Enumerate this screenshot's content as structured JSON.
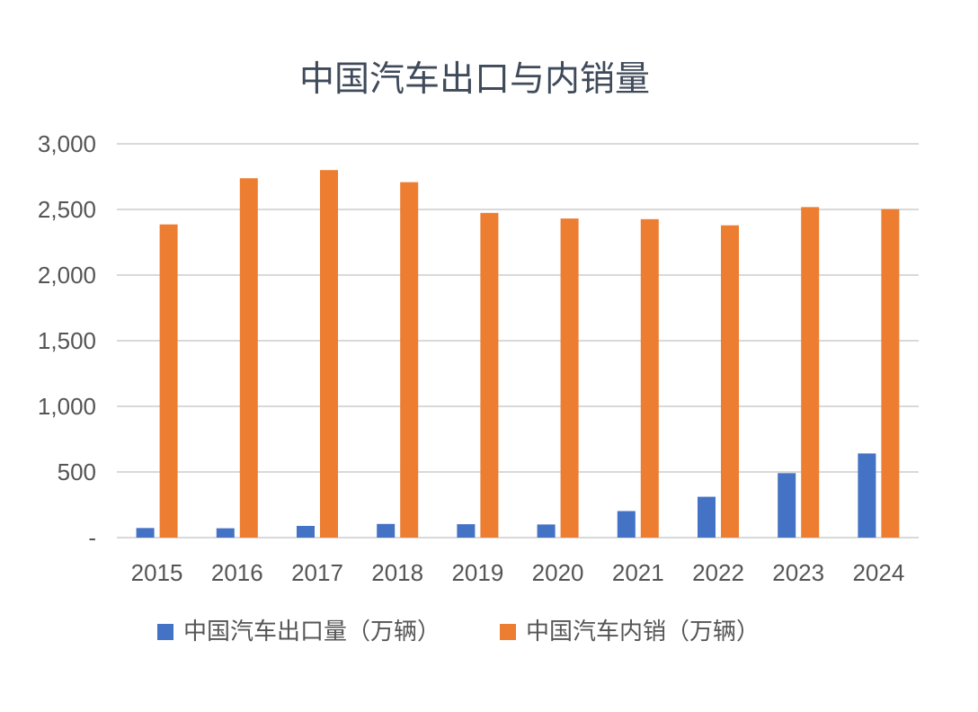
{
  "chart_data": {
    "type": "bar",
    "title": "中国汽车出口与内销量",
    "categories": [
      "2015",
      "2016",
      "2017",
      "2018",
      "2019",
      "2020",
      "2021",
      "2022",
      "2023",
      "2024"
    ],
    "series": [
      {
        "name": "中国汽车出口量（万辆）",
        "color": "#4472c4",
        "values": [
          73,
          71,
          89,
          104,
          102,
          100,
          202,
          311,
          491,
          641
        ]
      },
      {
        "name": "中国汽车内销（万辆）",
        "color": "#ed7d31",
        "values": [
          2386,
          2738,
          2800,
          2708,
          2474,
          2431,
          2426,
          2379,
          2518,
          2502
        ]
      }
    ],
    "y_ticks": [
      {
        "value": 0,
        "label": "-"
      },
      {
        "value": 500,
        "label": "500"
      },
      {
        "value": 1000,
        "label": "1,000"
      },
      {
        "value": 1500,
        "label": "1,500"
      },
      {
        "value": 2000,
        "label": "2,000"
      },
      {
        "value": 2500,
        "label": "2,500"
      },
      {
        "value": 3000,
        "label": "3,000"
      }
    ],
    "ylim": [
      0,
      3000
    ],
    "grid": true,
    "legend_position": "bottom"
  }
}
